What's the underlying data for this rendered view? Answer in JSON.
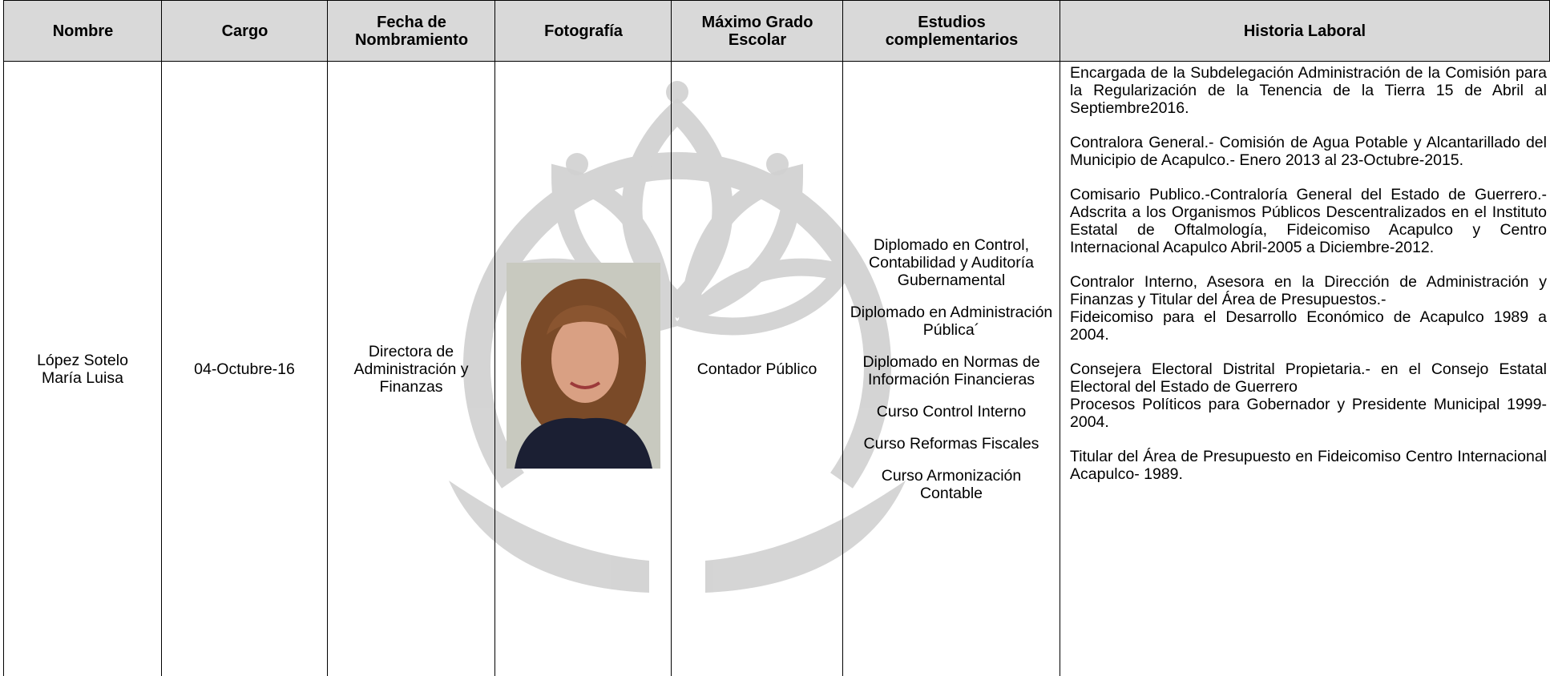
{
  "table": {
    "headers": [
      "Nombre",
      "Cargo",
      "Fecha de Nombramiento",
      "Fotografía",
      "Máximo Grado Escolar",
      "Estudios complementarios",
      "Historia Laboral"
    ],
    "row": {
      "nombre": [
        "López Sotelo",
        "María Luisa"
      ],
      "cargo": "04-Octubre-16",
      "fecha": "Directora de Administración y Finanzas",
      "grado": "Contador Público",
      "estudios": [
        "Diplomado en Control, Contabilidad y Auditoría Gubernamental",
        "Diplomado en Administración Pública´",
        "Diplomado en Normas de Información Financieras",
        "Curso Control Interno",
        "Curso Reformas Fiscales",
        "Curso Armonización Contable"
      ],
      "historia": [
        [
          "Encargada de la Subdelegación Administración de la Comisión para la Regularización de la Tenencia de la Tierra 15 de Abril al Septiembre2016."
        ],
        [
          "Contralora General.- Comisión de Agua Potable y Alcantarillado del Municipio de Acapulco.- Enero 2013 al 23-Octubre-2015."
        ],
        [
          "Comisario Publico.-Contraloría General del Estado de Guerrero.-Adscrita a los Organismos Públicos Descentralizados en el Instituto Estatal de Oftalmología, Fideicomiso Acapulco y Centro Internacional Acapulco Abril-2005 a Diciembre-2012."
        ],
        [
          "Contralor Interno, Asesora en la Dirección de Administración y Finanzas y Titular del Área de Presupuestos.-",
          "Fideicomiso para el Desarrollo Económico de Acapulco 1989 a 2004."
        ],
        [
          "Consejera Electoral Distrital Propietaria.- en el Consejo Estatal Electoral del Estado de Guerrero",
          "Procesos Políticos para Gobernador y Presidente Municipal 1999-2004."
        ],
        [
          "Titular del Área de Presupuesto en Fideicomiso Centro Internacional Acapulco- 1989."
        ]
      ]
    }
  }
}
